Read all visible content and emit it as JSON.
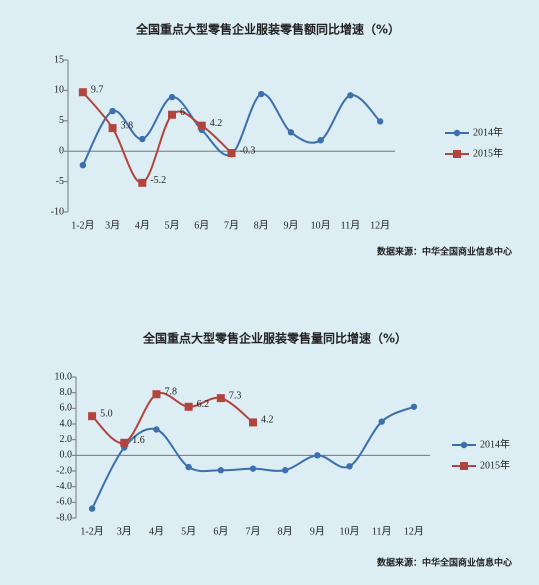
{
  "chart_data": [
    {
      "type": "line",
      "title": "全国重点大型零售企业服装零售额同比增速（%）",
      "categories": [
        "1-2月",
        "3月",
        "4月",
        "5月",
        "6月",
        "7月",
        "8月",
        "9月",
        "10月",
        "11月",
        "12月"
      ],
      "series": [
        {
          "name": "2014年",
          "color": "#3b6fae",
          "values": [
            -2.3,
            6.6,
            2.0,
            8.9,
            3.5,
            -0.5,
            9.4,
            3.1,
            1.8,
            9.2,
            4.9
          ]
        },
        {
          "name": "2015年",
          "color": "#b2443e",
          "values": [
            9.7,
            3.8,
            -5.2,
            6,
            4.2,
            -0.3,
            null,
            null,
            null,
            null,
            null
          ]
        }
      ],
      "ylim": [
        -10,
        15
      ],
      "yticks": [
        -10,
        -5,
        0,
        5,
        10,
        15
      ],
      "source": "数据来源：中华全国商业信息中心",
      "legend": "right"
    },
    {
      "type": "line",
      "title": "全国重点大型零售企业服装零售量同比增速（%）",
      "categories": [
        "1-2月",
        "3月",
        "4月",
        "5月",
        "6月",
        "7月",
        "8月",
        "9月",
        "10月",
        "11月",
        "12月"
      ],
      "series": [
        {
          "name": "2014年",
          "color": "#3b6fae",
          "values": [
            -6.8,
            1.0,
            3.3,
            -1.5,
            -1.9,
            -1.7,
            -1.9,
            0.0,
            -1.4,
            4.3,
            6.2
          ]
        },
        {
          "name": "2015年",
          "color": "#b2443e",
          "values": [
            5.0,
            1.6,
            7.8,
            6.2,
            7.3,
            4.2,
            null,
            null,
            null,
            null,
            null
          ],
          "value_labels": [
            "5.0",
            "1.6",
            "7.8",
            "6.2",
            "7.3",
            "4.2",
            null,
            null,
            null,
            null,
            null
          ]
        }
      ],
      "ylim": [
        -8,
        10
      ],
      "yticks": [
        {
          "value": -8,
          "label": "-8.0"
        },
        {
          "value": -6,
          "label": "-6.0"
        },
        {
          "value": -4,
          "label": "-4.0"
        },
        {
          "value": -2,
          "label": "-2.0"
        },
        {
          "value": 0,
          "label": "0.0"
        },
        {
          "value": 2,
          "label": "2.0"
        },
        {
          "value": 4,
          "label": "4.0"
        },
        {
          "value": 6,
          "label": "6.0"
        },
        {
          "value": 8,
          "label": "8.0"
        },
        {
          "value": 10,
          "label": "10.0"
        }
      ],
      "source": "数据来源：中华全国商业信息中心",
      "legend": "right"
    }
  ]
}
